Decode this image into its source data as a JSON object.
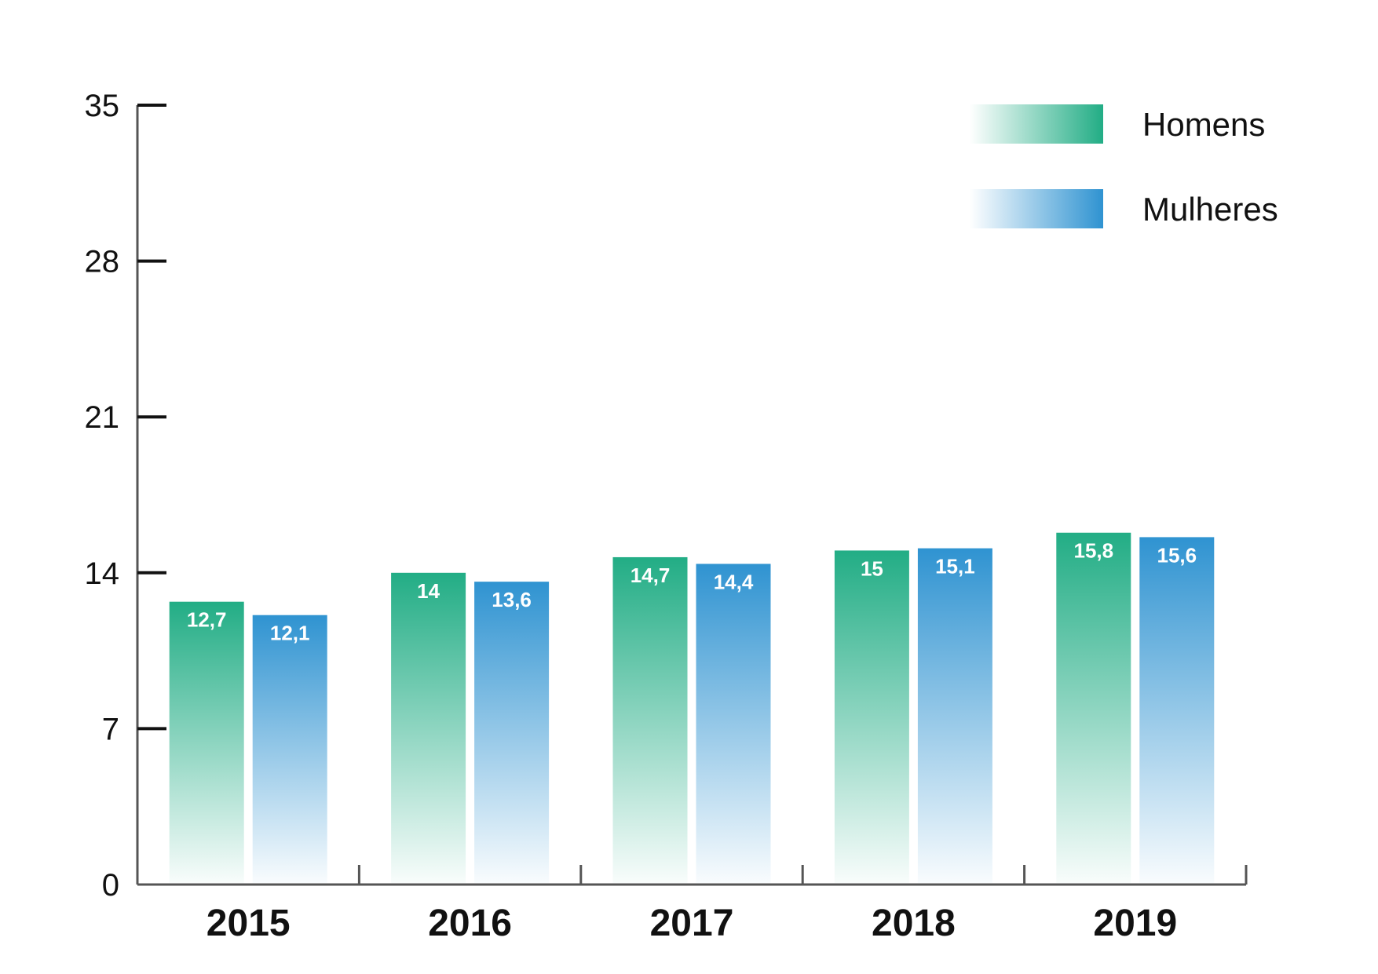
{
  "chart_data": {
    "type": "bar",
    "categories": [
      "2015",
      "2016",
      "2017",
      "2018",
      "2019"
    ],
    "series": [
      {
        "name": "Homens",
        "values": [
          12.7,
          14,
          14.7,
          15,
          15.8
        ],
        "labels": [
          "12,7",
          "14",
          "14,7",
          "15",
          "15,8"
        ],
        "color": "#22ad85"
      },
      {
        "name": "Mulheres",
        "values": [
          12.1,
          13.6,
          14.4,
          15.1,
          15.6
        ],
        "labels": [
          "12,1",
          "13,6",
          "14,4",
          "15,1",
          "15,6"
        ],
        "color": "#2f93d1"
      }
    ],
    "y_ticks": [
      "0",
      "7",
      "14",
      "21",
      "28",
      "35"
    ],
    "ylim": [
      0,
      35
    ],
    "title": "",
    "xlabel": "",
    "ylabel": "",
    "grid": false,
    "legend_position": "top-right"
  }
}
